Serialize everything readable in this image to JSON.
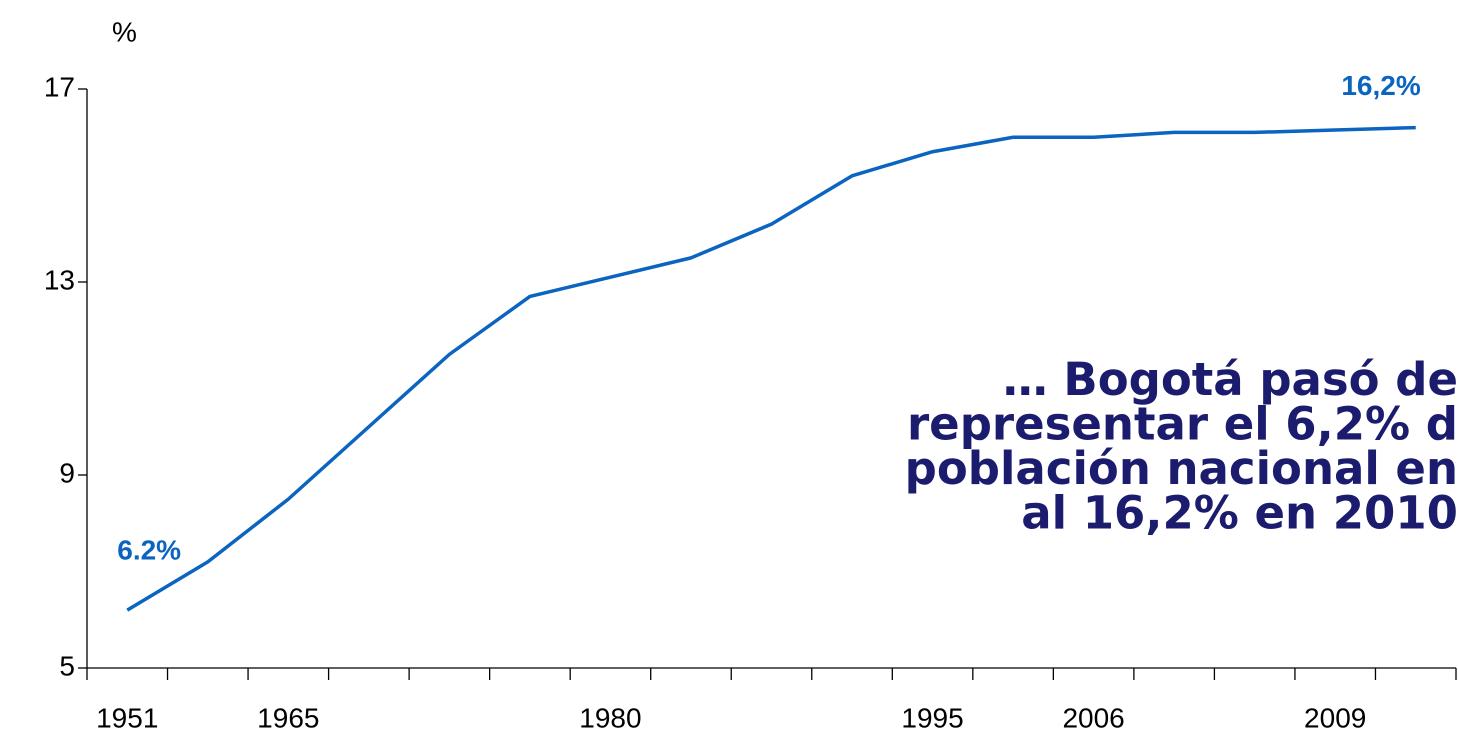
{
  "chart_data": {
    "type": "line",
    "y_label": "%",
    "categories": [
      "1951",
      null,
      "1965",
      null,
      null,
      null,
      "1980",
      null,
      null,
      null,
      "1995",
      null,
      "2006",
      null,
      null,
      "2009",
      null
    ],
    "series": [
      {
        "name": "Bogotá",
        "color": "#0a64c0",
        "values": [
          6.2,
          7.2,
          8.5,
          10.0,
          11.5,
          12.7,
          13.1,
          13.5,
          14.2,
          15.2,
          15.7,
          16.0,
          16.0,
          16.1,
          16.1,
          16.15,
          16.2
        ],
        "value_labels": [
          "6.2%",
          null,
          null,
          null,
          null,
          null,
          null,
          null,
          null,
          null,
          null,
          null,
          null,
          null,
          null,
          null,
          "16,2%"
        ]
      }
    ],
    "ylim": [
      5,
      17
    ],
    "yticks": [
      5,
      9,
      13,
      17
    ],
    "annotation": [
      "… Bogotá pasó de",
      "representar el 6,2% d",
      "población nacional en",
      "al 16,2% en 2010"
    ],
    "annotation_color": "#1c1c6e"
  }
}
